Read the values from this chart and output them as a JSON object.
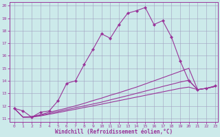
{
  "xlabel": "Windchill (Refroidissement éolien,°C)",
  "background_color": "#cceaea",
  "grid_color": "#a0a0c0",
  "line_color": "#993399",
  "xlim_min": -0.5,
  "xlim_max": 23.3,
  "ylim_min": 10.7,
  "ylim_max": 20.3,
  "xticks": [
    0,
    1,
    2,
    3,
    4,
    5,
    6,
    7,
    8,
    9,
    10,
    11,
    12,
    13,
    14,
    15,
    16,
    17,
    18,
    19,
    20,
    21,
    22,
    23
  ],
  "yticks": [
    11,
    12,
    13,
    14,
    15,
    16,
    17,
    18,
    19,
    20
  ],
  "line1_x": [
    0,
    1,
    2,
    3,
    4,
    5,
    6,
    7,
    8,
    9,
    10,
    11,
    12,
    13,
    14,
    15,
    16,
    17,
    18,
    19,
    20,
    21,
    22,
    23
  ],
  "line1_y": [
    11.8,
    11.6,
    11.1,
    11.5,
    11.6,
    12.4,
    13.8,
    14.0,
    15.3,
    16.5,
    17.75,
    17.4,
    18.5,
    19.4,
    19.6,
    19.85,
    18.5,
    18.8,
    17.5,
    15.6,
    14.0,
    13.3,
    13.4,
    13.6
  ],
  "line2_x": [
    0,
    1,
    2,
    3,
    4,
    5,
    6,
    7,
    8,
    9,
    10,
    11,
    12,
    13,
    14,
    15,
    16,
    17,
    18,
    19,
    20,
    21,
    22,
    23
  ],
  "line2_y": [
    11.8,
    11.1,
    11.15,
    11.3,
    11.5,
    11.65,
    11.82,
    12.0,
    12.2,
    12.42,
    12.62,
    12.85,
    13.05,
    13.28,
    13.5,
    13.75,
    14.0,
    14.25,
    14.5,
    14.75,
    15.0,
    13.3,
    13.4,
    13.55
  ],
  "line3_x": [
    0,
    1,
    2,
    3,
    4,
    5,
    6,
    7,
    8,
    9,
    10,
    11,
    12,
    13,
    14,
    15,
    16,
    17,
    18,
    19,
    20,
    21,
    22,
    23
  ],
  "line3_y": [
    11.8,
    11.1,
    11.12,
    11.25,
    11.4,
    11.55,
    11.7,
    11.85,
    12.0,
    12.15,
    12.3,
    12.48,
    12.65,
    12.82,
    13.0,
    13.18,
    13.36,
    13.55,
    13.72,
    13.9,
    14.05,
    13.3,
    13.4,
    13.55
  ],
  "line4_x": [
    0,
    1,
    2,
    3,
    4,
    5,
    6,
    7,
    8,
    9,
    10,
    11,
    12,
    13,
    14,
    15,
    16,
    17,
    18,
    19,
    20,
    21,
    22,
    23
  ],
  "line4_y": [
    11.8,
    11.1,
    11.1,
    11.2,
    11.33,
    11.46,
    11.6,
    11.73,
    11.87,
    12.0,
    12.14,
    12.28,
    12.42,
    12.56,
    12.7,
    12.84,
    12.98,
    13.12,
    13.26,
    13.4,
    13.5,
    13.3,
    13.4,
    13.55
  ]
}
